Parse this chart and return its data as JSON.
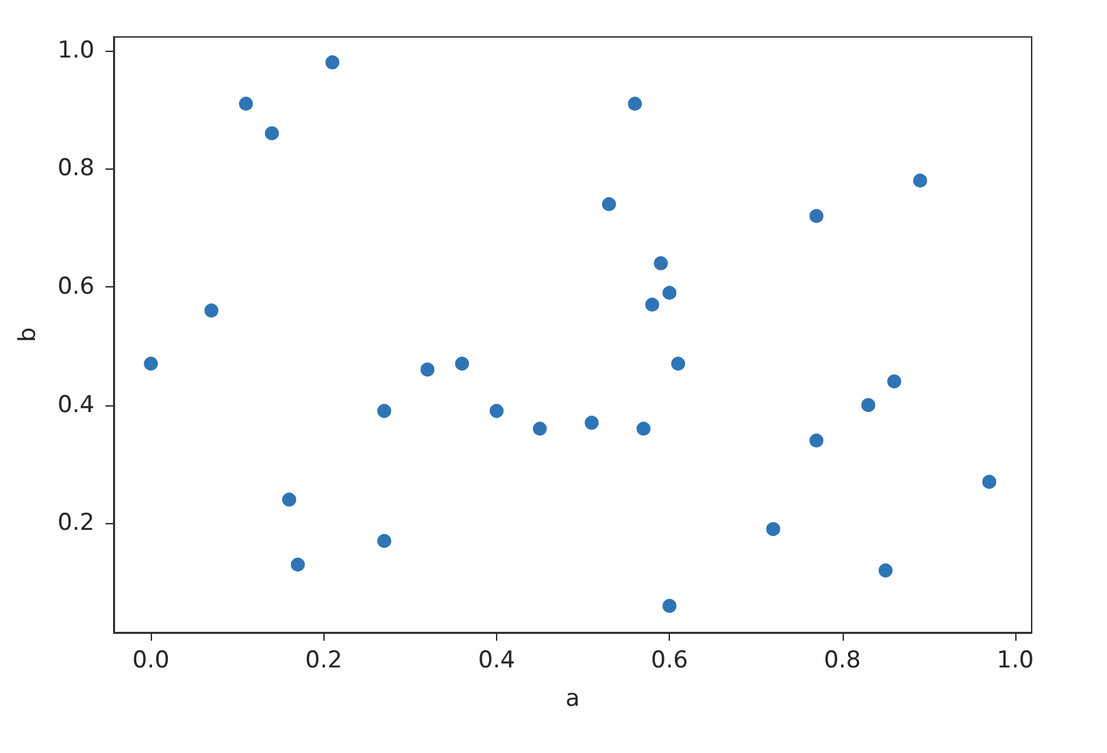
{
  "chart_data": {
    "type": "scatter",
    "xlabel": "a",
    "ylabel": "b",
    "x": [
      0.21,
      0.11,
      0.14,
      0.07,
      0.0,
      0.27,
      0.16,
      0.27,
      0.17,
      0.56,
      0.53,
      0.59,
      0.6,
      0.58,
      0.32,
      0.36,
      0.4,
      0.45,
      0.51,
      0.57,
      0.61,
      0.6,
      0.89,
      0.77,
      0.86,
      0.83,
      0.77,
      0.97,
      0.72,
      0.85
    ],
    "values": [
      0.98,
      0.91,
      0.86,
      0.56,
      0.47,
      0.39,
      0.24,
      0.17,
      0.13,
      0.91,
      0.74,
      0.64,
      0.59,
      0.57,
      0.46,
      0.47,
      0.39,
      0.36,
      0.37,
      0.36,
      0.47,
      0.06,
      0.78,
      0.72,
      0.44,
      0.4,
      0.34,
      0.27,
      0.19,
      0.12
    ],
    "color": "#2f74b5",
    "xlim": [
      -0.043,
      1.019
    ],
    "ylim": [
      0.015,
      1.023
    ],
    "xticks": [
      {
        "value": 0,
        "label": "0.0"
      },
      0.2,
      0.4,
      0.6,
      0.8,
      {
        "value": 1,
        "label": "1.0"
      }
    ],
    "yticks": [
      0.2,
      0.4,
      0.6,
      0.8,
      {
        "value": 1,
        "label": "1.0"
      }
    ],
    "grid": false,
    "marker": "circle"
  }
}
